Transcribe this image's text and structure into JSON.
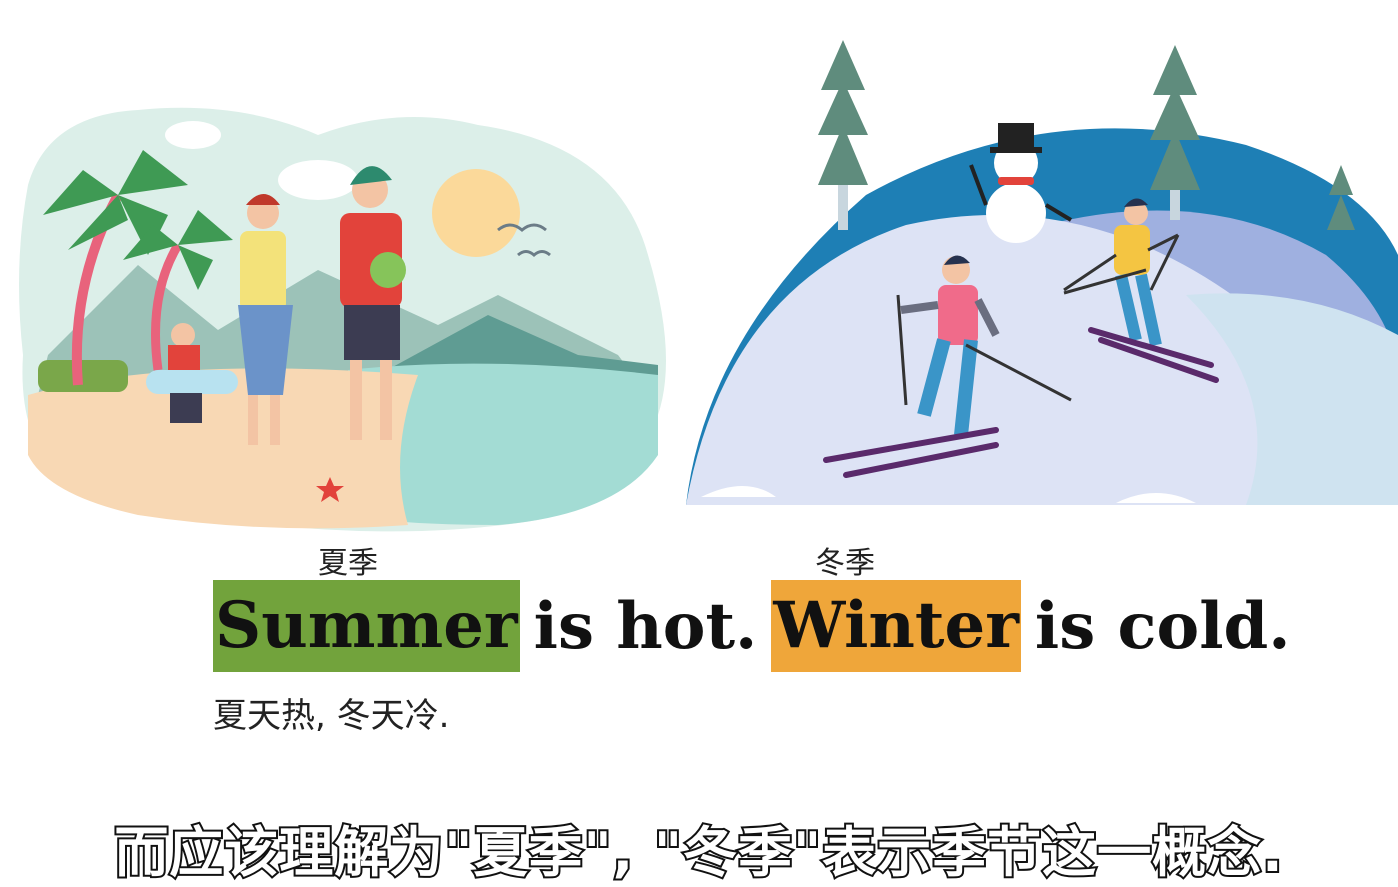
{
  "lesson": {
    "gloss_summer": "夏季",
    "gloss_winter": "冬季",
    "sentence": {
      "word1": "Summer",
      "mid1": "is hot.",
      "word2": "Winter",
      "mid2": "is cold."
    },
    "translation": "夏天热, 冬天冷.",
    "subtitle": "而应该理解为\"夏季\", \"冬季\"表示季节这一概念."
  },
  "colors": {
    "summer_highlight": "#72a33c",
    "winter_highlight": "#efa63a"
  }
}
